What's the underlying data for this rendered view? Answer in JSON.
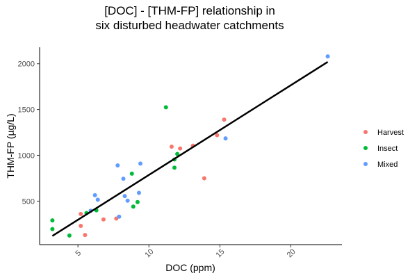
{
  "chart_data": {
    "type": "scatter",
    "title": [
      "[DOC] - [THM-FP] relationship in",
      "six disturbed headwater catchments"
    ],
    "xlabel": "DOC (ppm)",
    "ylabel": "THM-FP (µg/L)",
    "xlim": [
      2.3,
      23.6
    ],
    "ylim": [
      25,
      2180
    ],
    "xticks": [
      5,
      10,
      15,
      20
    ],
    "yticks": [
      500,
      1000,
      1500,
      2000
    ],
    "grid": false,
    "legend_position": "right",
    "series": [
      {
        "name": "Harvest",
        "color": "#F8766D",
        "points": [
          [
            5.2,
            360
          ],
          [
            5.2,
            230
          ],
          [
            5.5,
            130
          ],
          [
            6.8,
            300
          ],
          [
            7.7,
            310
          ],
          [
            11.6,
            1095
          ],
          [
            12.2,
            1075
          ],
          [
            13.1,
            1105
          ],
          [
            13.9,
            750
          ],
          [
            14.8,
            1220
          ],
          [
            15.3,
            1390
          ]
        ]
      },
      {
        "name": "Insect",
        "color": "#00BA38",
        "points": [
          [
            3.2,
            290
          ],
          [
            3.2,
            195
          ],
          [
            4.4,
            125
          ],
          [
            5.6,
            370
          ],
          [
            6.3,
            400
          ],
          [
            8.8,
            800
          ],
          [
            8.9,
            440
          ],
          [
            9.2,
            490
          ],
          [
            11.2,
            1525
          ],
          [
            11.8,
            955
          ],
          [
            11.8,
            865
          ],
          [
            12.0,
            1015
          ]
        ]
      },
      {
        "name": "Mixed",
        "color": "#619CFF",
        "points": [
          [
            5.9,
            395
          ],
          [
            6.2,
            565
          ],
          [
            6.4,
            515
          ],
          [
            7.8,
            890
          ],
          [
            7.9,
            330
          ],
          [
            8.2,
            745
          ],
          [
            8.3,
            555
          ],
          [
            8.5,
            505
          ],
          [
            9.3,
            590
          ],
          [
            9.4,
            910
          ],
          [
            15.4,
            1185
          ],
          [
            22.6,
            2080
          ]
        ]
      }
    ],
    "fit_line": {
      "x": [
        3.2,
        22.6
      ],
      "y": [
        120,
        2020
      ],
      "color": "#000000"
    }
  }
}
